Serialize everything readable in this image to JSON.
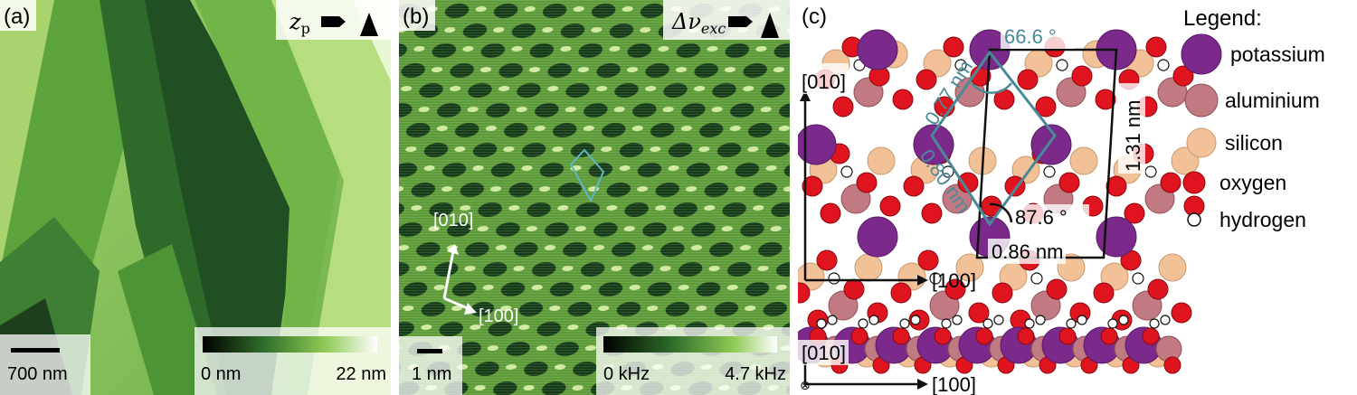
{
  "panels": {
    "a": {
      "label": "(a)",
      "channel_symbol": "z",
      "channel_subscript": "p",
      "scale_bar": "700 nm",
      "colorbar_min": "0 nm",
      "colorbar_max": "22 nm"
    },
    "b": {
      "label": "(b)",
      "channel_symbol": "Δν",
      "channel_subscript": "exc",
      "scale_bar": "1 nm",
      "colorbar_min": "0 kHz",
      "colorbar_max": "4.7 kHz",
      "axis_y": "[010]",
      "axis_x": "[100]"
    },
    "c": {
      "label": "(c)",
      "axis_y": "[010]",
      "axis_x": "[100]",
      "side_axis_y": "[010]",
      "side_axis_x": "[100]",
      "side_axis_origin": "⊗",
      "angle_top": "66.6 °",
      "angle_bottom": "87.6 °",
      "length_077": "0.77 nm",
      "length_080": "0.80 nm",
      "length_131": "1.31 nm",
      "length_086": "0.86 nm"
    }
  },
  "legend": {
    "title": "Legend:",
    "items": [
      {
        "label": "potassium",
        "color": "#7b2a8c"
      },
      {
        "label": "aluminium",
        "color": "#c27a82"
      },
      {
        "label": "silicon",
        "color": "#f2c197"
      },
      {
        "label": "oxygen",
        "color": "#e0141e"
      },
      {
        "label": "hydrogen",
        "color": "#ffffff"
      }
    ]
  },
  "colors": {
    "topography_dark": "#1d4a1e",
    "topography_light": "#d2eda0",
    "afm_green": "#4f8a2a",
    "unit_cell": "#4a8a98",
    "lattice_cell": "#4a8a98"
  }
}
